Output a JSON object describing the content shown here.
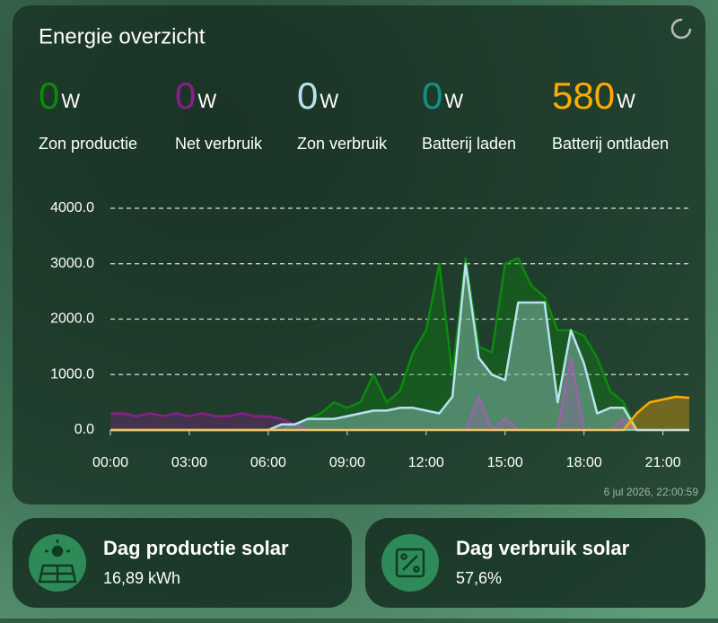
{
  "header": {
    "title": "Energie overzicht"
  },
  "stats": [
    {
      "value": 0,
      "unit": "W"
    },
    {
      "value": 0,
      "unit": "W"
    },
    {
      "value": 0,
      "unit": "W"
    },
    {
      "value": 0,
      "unit": "W"
    },
    {
      "value": 580,
      "unit": "W"
    }
  ],
  "chart_data": {
    "type": "area",
    "x": [
      0,
      0.5,
      1,
      1.5,
      2,
      2.5,
      3,
      3.5,
      4,
      4.5,
      5,
      5.5,
      6,
      6.5,
      7,
      7.5,
      8,
      8.5,
      9,
      9.5,
      10,
      10.5,
      11,
      11.5,
      12,
      12.5,
      13,
      13.5,
      14,
      14.5,
      15,
      15.5,
      16,
      16.5,
      17,
      17.5,
      18,
      18.5,
      19,
      19.5,
      20,
      20.5,
      21,
      21.5,
      22
    ],
    "xlim": [
      0,
      22
    ],
    "xticks": [
      {
        "value": 0,
        "label": "00:00"
      },
      {
        "value": 3,
        "label": "03:00"
      },
      {
        "value": 6,
        "label": "06:00"
      },
      {
        "value": 9,
        "label": "09:00"
      },
      {
        "value": 12,
        "label": "12:00"
      },
      {
        "value": 15,
        "label": "15:00"
      },
      {
        "value": 18,
        "label": "18:00"
      },
      {
        "value": 21,
        "label": "21:00"
      }
    ],
    "ylim": [
      0,
      4000
    ],
    "yticks": [
      {
        "value": 0,
        "label": "0.0"
      },
      {
        "value": 1000,
        "label": "1000.0"
      },
      {
        "value": 2000,
        "label": "2000.0"
      },
      {
        "value": 3000,
        "label": "3000.0"
      },
      {
        "value": 4000,
        "label": "4000.0"
      }
    ],
    "grid": true,
    "series": [
      {
        "name": "Zon productie",
        "color": "#0c8a0c",
        "values": [
          0,
          0,
          0,
          0,
          0,
          0,
          0,
          0,
          0,
          0,
          0,
          0,
          0,
          0,
          100,
          200,
          300,
          500,
          400,
          500,
          1000,
          500,
          700,
          1400,
          1800,
          3000,
          1000,
          3100,
          1500,
          1400,
          3000,
          3100,
          2600,
          2400,
          1800,
          1800,
          1700,
          1300,
          700,
          500,
          0,
          0,
          0,
          0,
          0
        ]
      },
      {
        "name": "Net verbruik",
        "color": "#8a1f8a",
        "values": [
          300,
          300,
          250,
          300,
          250,
          300,
          250,
          300,
          250,
          250,
          300,
          250,
          250,
          200,
          100,
          0,
          0,
          0,
          0,
          0,
          0,
          0,
          0,
          0,
          0,
          0,
          0,
          0,
          600,
          0,
          200,
          0,
          0,
          0,
          0,
          1300,
          0,
          0,
          0,
          200,
          0,
          0,
          0,
          0,
          0
        ]
      },
      {
        "name": "Zon verbruik",
        "color": "#b6e3ee",
        "values": [
          0,
          0,
          0,
          0,
          0,
          0,
          0,
          0,
          0,
          0,
          0,
          0,
          0,
          100,
          100,
          200,
          200,
          200,
          250,
          300,
          350,
          350,
          400,
          400,
          350,
          300,
          600,
          3000,
          1300,
          1000,
          900,
          2300,
          2300,
          2300,
          500,
          1800,
          1200,
          300,
          400,
          400,
          0,
          0,
          0,
          0,
          0
        ]
      },
      {
        "name": "Batterij laden",
        "color": "#11908a",
        "values": [
          0,
          0,
          0,
          0,
          0,
          0,
          0,
          0,
          0,
          0,
          0,
          0,
          0,
          0,
          0,
          0,
          0,
          0,
          0,
          0,
          0,
          0,
          0,
          0,
          0,
          0,
          0,
          0,
          0,
          0,
          0,
          0,
          0,
          0,
          0,
          0,
          0,
          0,
          0,
          0,
          0,
          0,
          0,
          0,
          0
        ]
      },
      {
        "name": "Batterij ontladen",
        "color": "#ffab00",
        "values": [
          0,
          0,
          0,
          0,
          0,
          0,
          0,
          0,
          0,
          0,
          0,
          0,
          0,
          0,
          0,
          0,
          0,
          0,
          0,
          0,
          0,
          0,
          0,
          0,
          0,
          0,
          0,
          0,
          0,
          0,
          0,
          0,
          0,
          0,
          0,
          0,
          0,
          0,
          0,
          0,
          300,
          500,
          550,
          600,
          580
        ]
      }
    ]
  },
  "timestamp": "6 jul 2026, 22:00:59",
  "cards": [
    {
      "title": "Dag productie solar",
      "value": "16,89 kWh"
    },
    {
      "title": "Dag verbruik solar",
      "value": "57,6%"
    }
  ]
}
